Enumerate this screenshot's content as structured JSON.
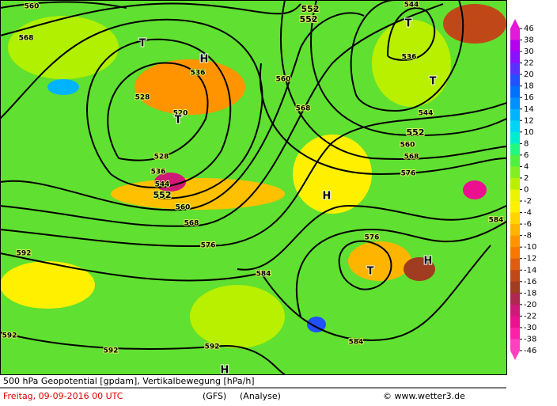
{
  "map": {
    "contour_labels": [
      560,
      552,
      552,
      568,
      536,
      528,
      520,
      560,
      568,
      544,
      536,
      544,
      552,
      560,
      568,
      576,
      528,
      536,
      544,
      552,
      560,
      568,
      576,
      576,
      584,
      584,
      592,
      592,
      592,
      592,
      584
    ],
    "centers": [
      "T",
      "H",
      "T",
      "T",
      "T",
      "H",
      "T",
      "H",
      "H"
    ]
  },
  "legend": {
    "ticks": [
      46,
      38,
      30,
      22,
      20,
      18,
      16,
      14,
      12,
      10,
      8,
      6,
      4,
      2,
      0,
      -2,
      -4,
      -6,
      -8,
      -10,
      -12,
      -14,
      -16,
      -18,
      -20,
      -22,
      -30,
      -38,
      -46
    ],
    "colors": [
      "#e418d8",
      "#b400f0",
      "#8a10ff",
      "#5a30ff",
      "#2050ff",
      "#0070ff",
      "#0090ff",
      "#00b4ff",
      "#00d4f4",
      "#00ecd0",
      "#20f880",
      "#50f040",
      "#80f020",
      "#b8f000",
      "#ecf400",
      "#fff000",
      "#ffd400",
      "#ffb400",
      "#ff9400",
      "#f87800",
      "#e05c10",
      "#c04818",
      "#a03c20",
      "#b02850",
      "#d01878",
      "#ec1090",
      "#ff20a8",
      "#ff40c0"
    ]
  },
  "footer": {
    "title": "500 hPa Geopotential [gpdam], Vertikalbewegung [hPa/h]",
    "date": "Freitag, 09-09-2016  00 UTC",
    "model": "(GFS)",
    "run": "(Analyse)",
    "credit": "© www.wetter3.de"
  }
}
